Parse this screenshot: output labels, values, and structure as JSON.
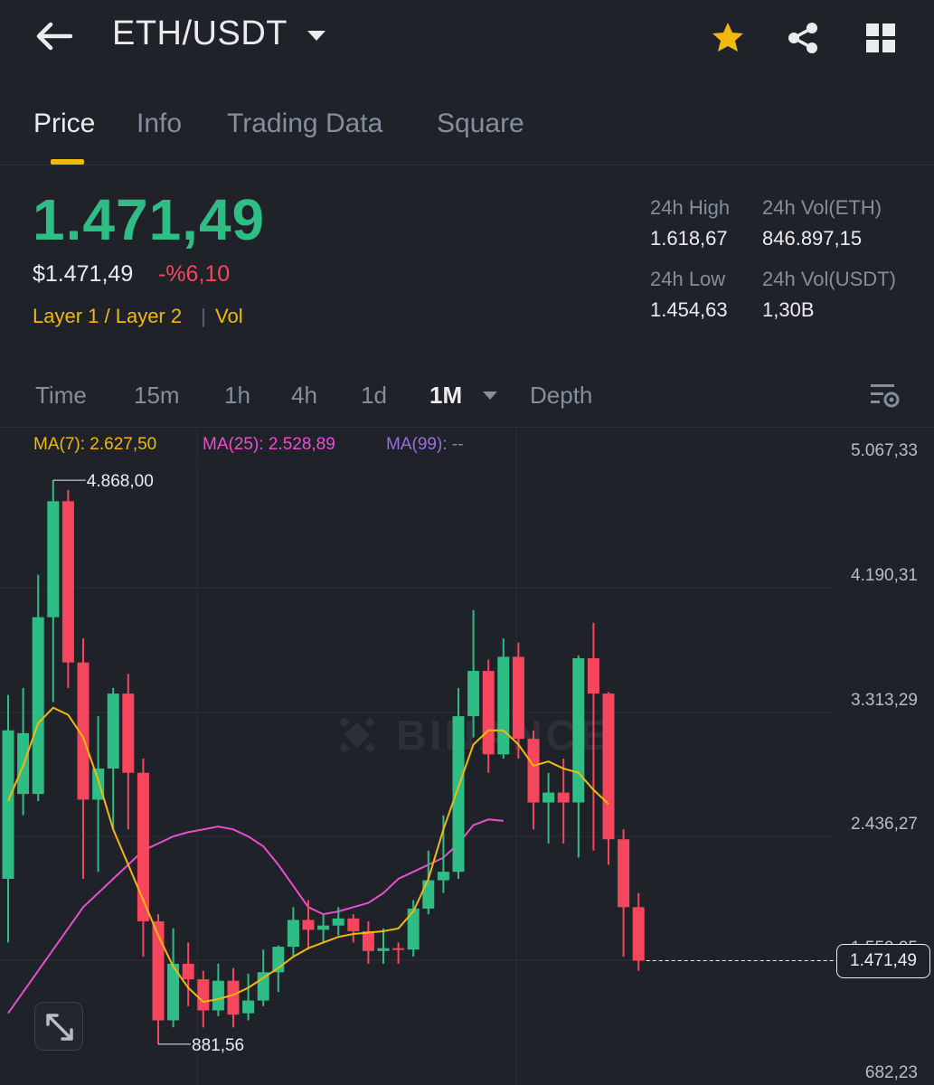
{
  "header": {
    "back_icon": "arrow-left-icon",
    "pair": "ETH/USDT",
    "icons": [
      "star-icon",
      "share-icon",
      "grid-icon"
    ],
    "star_color": "#f0b90b"
  },
  "tabs": [
    {
      "label": "Price",
      "active": true
    },
    {
      "label": "Info",
      "active": false
    },
    {
      "label": "Trading Data",
      "active": false
    },
    {
      "label": "Square",
      "active": false
    }
  ],
  "price": {
    "last": "1.471,49",
    "fiat": "$1.471,49",
    "change": "-%6,10",
    "tag_category": "Layer 1 / Layer 2",
    "tag_separator": "|",
    "tag_vol": "Vol"
  },
  "stats": {
    "high_label": "24h High",
    "high": "1.618,67",
    "vol_eth_label": "24h Vol(ETH)",
    "vol_eth": "846.897,15",
    "low_label": "24h Low",
    "low": "1.454,63",
    "vol_usdt_label": "24h Vol(USDT)",
    "vol_usdt": "1,30B"
  },
  "intervals": {
    "items": [
      "Time",
      "15m",
      "1h",
      "4h",
      "1d",
      "1M",
      "Depth"
    ],
    "active": "1M",
    "settings_icon": "chart-settings-icon"
  },
  "ma": {
    "ma7": "MA(7): 2.627,50",
    "ma25": "MA(25): 2.528,89",
    "ma99": "MA(99): --",
    "colors": {
      "ma7": "#f0b90b",
      "ma25": "#e84fce",
      "ma99": "#9b6ce0"
    }
  },
  "chart_data": {
    "type": "candlestick",
    "yticks": [
      "5.067,33",
      "4.190,31",
      "3.313,29",
      "2.436,27",
      "1.559,25",
      "682,23"
    ],
    "ylim": [
      682.23,
      5067.33
    ],
    "high_marker": "4.868,00",
    "low_marker": "881,56",
    "current_price": "1.471,49",
    "up_color": "#2ebd85",
    "down_color": "#f6465d",
    "watermark": "BINANCE",
    "candles": [
      {
        "o": 2050,
        "c": 3100,
        "h": 3350,
        "l": 1600
      },
      {
        "o": 2650,
        "c": 3080,
        "h": 3400,
        "l": 2500
      },
      {
        "o": 2650,
        "c": 3900,
        "h": 4200,
        "l": 2600
      },
      {
        "o": 3900,
        "c": 4720,
        "h": 4868,
        "l": 3300
      },
      {
        "o": 4720,
        "c": 3580,
        "h": 4800,
        "l": 3400
      },
      {
        "o": 3580,
        "c": 2610,
        "h": 3750,
        "l": 2050
      },
      {
        "o": 2610,
        "c": 2830,
        "h": 3200,
        "l": 2100
      },
      {
        "o": 2830,
        "c": 3360,
        "h": 3400,
        "l": 2400
      },
      {
        "o": 3360,
        "c": 2800,
        "h": 3500,
        "l": 2400
      },
      {
        "o": 2800,
        "c": 1750,
        "h": 2900,
        "l": 1500
      },
      {
        "o": 1750,
        "c": 1050,
        "h": 1800,
        "l": 881.56
      },
      {
        "o": 1050,
        "c": 1450,
        "h": 1700,
        "l": 1000
      },
      {
        "o": 1450,
        "c": 1340,
        "h": 1600,
        "l": 1150
      },
      {
        "o": 1340,
        "c": 1120,
        "h": 1400,
        "l": 1000
      },
      {
        "o": 1120,
        "c": 1330,
        "h": 1450,
        "l": 1080
      },
      {
        "o": 1330,
        "c": 1090,
        "h": 1420,
        "l": 1000
      },
      {
        "o": 1100,
        "c": 1190,
        "h": 1380,
        "l": 1050
      },
      {
        "o": 1190,
        "c": 1390,
        "h": 1550,
        "l": 1150
      },
      {
        "o": 1390,
        "c": 1570,
        "h": 1580,
        "l": 1250
      },
      {
        "o": 1570,
        "c": 1760,
        "h": 1850,
        "l": 1500
      },
      {
        "o": 1760,
        "c": 1690,
        "h": 1900,
        "l": 1550
      },
      {
        "o": 1690,
        "c": 1720,
        "h": 1800,
        "l": 1600
      },
      {
        "o": 1720,
        "c": 1770,
        "h": 1850,
        "l": 1650
      },
      {
        "o": 1770,
        "c": 1680,
        "h": 1800,
        "l": 1600
      },
      {
        "o": 1680,
        "c": 1540,
        "h": 1750,
        "l": 1450
      },
      {
        "o": 1540,
        "c": 1560,
        "h": 1700,
        "l": 1450
      },
      {
        "o": 1560,
        "c": 1550,
        "h": 1600,
        "l": 1450
      },
      {
        "o": 1550,
        "c": 1840,
        "h": 1900,
        "l": 1500
      },
      {
        "o": 1840,
        "c": 2040,
        "h": 2250,
        "l": 1800
      },
      {
        "o": 2040,
        "c": 2100,
        "h": 2500,
        "l": 1950
      },
      {
        "o": 2100,
        "c": 3200,
        "h": 3400,
        "l": 2050
      },
      {
        "o": 3200,
        "c": 3520,
        "h": 3950,
        "l": 3050
      },
      {
        "o": 3520,
        "c": 2930,
        "h": 3600,
        "l": 2800
      },
      {
        "o": 2930,
        "c": 3620,
        "h": 3750,
        "l": 2900
      },
      {
        "o": 3620,
        "c": 3040,
        "h": 3720,
        "l": 2900
      },
      {
        "o": 3040,
        "c": 2590,
        "h": 3100,
        "l": 2400
      },
      {
        "o": 2590,
        "c": 2660,
        "h": 2800,
        "l": 2300
      },
      {
        "o": 2660,
        "c": 2590,
        "h": 2900,
        "l": 2300
      },
      {
        "o": 2590,
        "c": 3610,
        "h": 3630,
        "l": 2200
      },
      {
        "o": 3610,
        "c": 3360,
        "h": 3860,
        "l": 2250
      },
      {
        "o": 3360,
        "c": 2330,
        "h": 3370,
        "l": 2150
      },
      {
        "o": 2330,
        "c": 1850,
        "h": 2400,
        "l": 1500
      },
      {
        "o": 1850,
        "c": 1471.49,
        "h": 1950,
        "l": 1400
      }
    ],
    "ma7_series": [
      2600,
      2850,
      3150,
      3260,
      3210,
      3050,
      2750,
      2400,
      2150,
      1900,
      1650,
      1430,
      1280,
      1180,
      1200,
      1230,
      1280,
      1350,
      1420,
      1500,
      1560,
      1600,
      1640,
      1660,
      1670,
      1680,
      1700,
      1820,
      2050,
      2400,
      2700,
      3000,
      3100,
      3100,
      3000,
      2850,
      2880,
      2830,
      2800,
      2680,
      2580
    ],
    "ma25_series": [
      1100,
      1250,
      1400,
      1550,
      1700,
      1850,
      1950,
      2050,
      2150,
      2250,
      2300,
      2350,
      2380,
      2400,
      2420,
      2400,
      2350,
      2280,
      2150,
      2000,
      1850,
      1800,
      1820,
      1850,
      1880,
      1950,
      2050,
      2100,
      2150,
      2200,
      2300,
      2430,
      2470,
      2460
    ]
  }
}
